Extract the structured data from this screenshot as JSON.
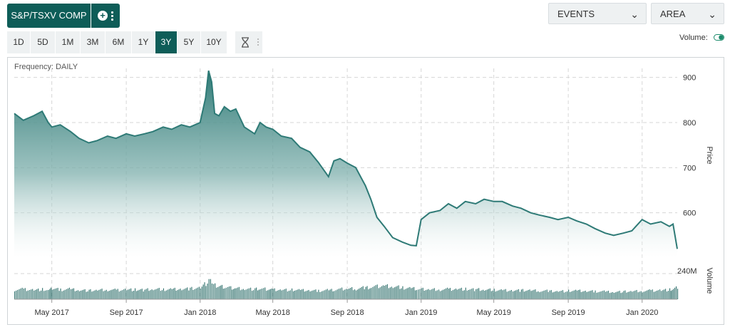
{
  "toolbar": {
    "symbol": "S&P/TSXV COMP",
    "events_label": "EVENTS",
    "chart_type_label": "AREA",
    "ranges": [
      "1D",
      "5D",
      "1M",
      "3M",
      "6M",
      "1Y",
      "3Y",
      "5Y",
      "10Y"
    ],
    "active_range": "3Y",
    "volume_label": "Volume:",
    "volume_on": true
  },
  "colors": {
    "accent": "#0e5d58",
    "line": "#2e7a76",
    "volume_bar": "#2f706c"
  },
  "chart_data": {
    "type": "area",
    "frequency_label": "Frequency: DAILY",
    "ylabel": "Price",
    "ylim": [
      500,
      920
    ],
    "yticks": [
      600,
      700,
      800,
      900
    ],
    "x_tick_labels": [
      "May 2017",
      "Sep 2017",
      "Jan 2018",
      "May 2018",
      "Sep 2018",
      "Jan 2019",
      "May 2019",
      "Sep 2019",
      "Jan 2020"
    ],
    "x_ticks": [
      "2017-05-01",
      "2017-09-01",
      "2018-01-01",
      "2018-05-01",
      "2018-09-01",
      "2019-01-01",
      "2019-05-01",
      "2019-09-01",
      "2020-01-01"
    ],
    "xlim": [
      "2017-02-28",
      "2020-02-28"
    ],
    "grid": true,
    "x": [
      "2017-02-28",
      "2017-03-15",
      "2017-04-01",
      "2017-04-15",
      "2017-04-25",
      "2017-05-01",
      "2017-05-15",
      "2017-06-01",
      "2017-06-15",
      "2017-07-01",
      "2017-07-15",
      "2017-08-01",
      "2017-08-15",
      "2017-09-01",
      "2017-09-15",
      "2017-10-01",
      "2017-10-15",
      "2017-11-01",
      "2017-11-15",
      "2017-12-01",
      "2017-12-15",
      "2018-01-01",
      "2018-01-10",
      "2018-01-15",
      "2018-01-20",
      "2018-01-25",
      "2018-02-01",
      "2018-02-10",
      "2018-02-20",
      "2018-03-01",
      "2018-03-15",
      "2018-04-01",
      "2018-04-10",
      "2018-04-20",
      "2018-05-01",
      "2018-05-15",
      "2018-06-01",
      "2018-06-15",
      "2018-07-01",
      "2018-07-15",
      "2018-08-01",
      "2018-08-10",
      "2018-08-20",
      "2018-09-01",
      "2018-09-15",
      "2018-10-01",
      "2018-10-10",
      "2018-10-20",
      "2018-11-01",
      "2018-11-15",
      "2018-12-01",
      "2018-12-15",
      "2018-12-24",
      "2019-01-01",
      "2019-01-15",
      "2019-02-01",
      "2019-02-15",
      "2019-03-01",
      "2019-03-15",
      "2019-04-01",
      "2019-04-15",
      "2019-05-01",
      "2019-05-15",
      "2019-06-01",
      "2019-06-15",
      "2019-07-01",
      "2019-07-15",
      "2019-08-01",
      "2019-08-15",
      "2019-09-01",
      "2019-09-15",
      "2019-10-01",
      "2019-10-15",
      "2019-11-01",
      "2019-11-15",
      "2019-12-01",
      "2019-12-15",
      "2020-01-01",
      "2020-01-15",
      "2020-02-01",
      "2020-02-15",
      "2020-02-21",
      "2020-02-28"
    ],
    "values": [
      820,
      805,
      815,
      825,
      800,
      790,
      795,
      780,
      765,
      755,
      760,
      770,
      765,
      775,
      770,
      775,
      780,
      790,
      785,
      795,
      790,
      800,
      855,
      915,
      890,
      820,
      815,
      835,
      825,
      830,
      790,
      775,
      800,
      790,
      785,
      770,
      765,
      745,
      735,
      712,
      680,
      715,
      720,
      710,
      700,
      660,
      630,
      590,
      570,
      545,
      535,
      528,
      527,
      585,
      600,
      605,
      620,
      610,
      625,
      620,
      630,
      625,
      625,
      615,
      610,
      600,
      595,
      590,
      585,
      590,
      582,
      575,
      565,
      555,
      550,
      555,
      560,
      585,
      575,
      580,
      570,
      575,
      520
    ],
    "volume_label": "Volume",
    "volume_tick": "240M",
    "volume_ylim": [
      0,
      320
    ],
    "volume": [
      90,
      95,
      88,
      92,
      85,
      100,
      90,
      95,
      88,
      82,
      85,
      90,
      86,
      92,
      90,
      88,
      95,
      92,
      96,
      98,
      100,
      105,
      150,
      180,
      160,
      130,
      120,
      115,
      110,
      105,
      100,
      95,
      98,
      96,
      92,
      90,
      88,
      85,
      82,
      80,
      85,
      90,
      95,
      98,
      100,
      110,
      115,
      120,
      125,
      118,
      110,
      105,
      100,
      95,
      90,
      92,
      95,
      98,
      95,
      92,
      90,
      88,
      86,
      85,
      84,
      82,
      80,
      78,
      76,
      78,
      80,
      76,
      74,
      72,
      70,
      72,
      74,
      78,
      82,
      85,
      90,
      95,
      110
    ]
  }
}
